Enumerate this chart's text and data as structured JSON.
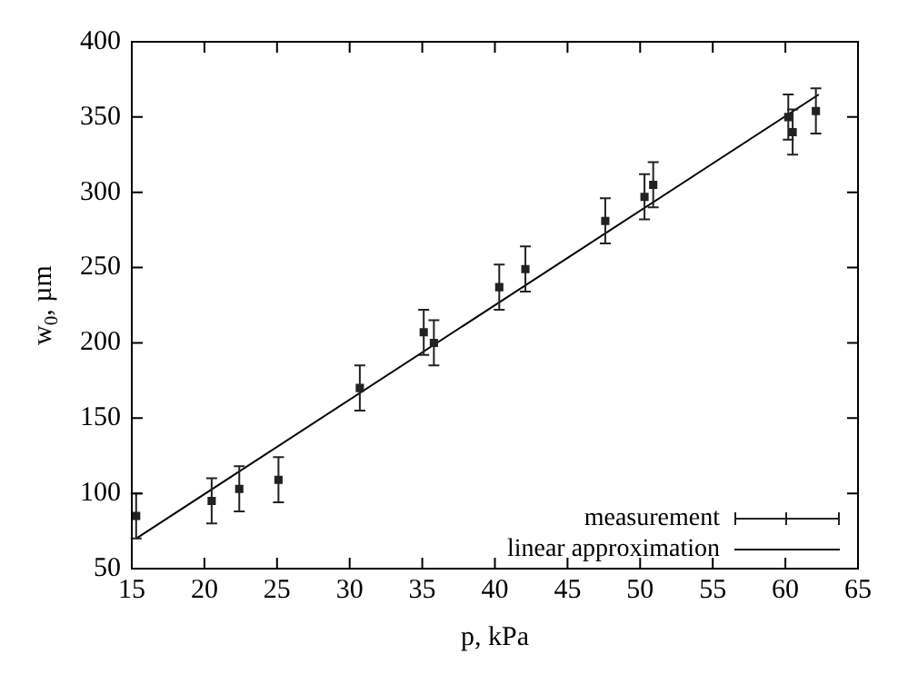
{
  "chart_data": {
    "type": "scatter",
    "xlabel": "p, kPa",
    "ylabel": "w$_{0}$, µm",
    "xlim": [
      15,
      65
    ],
    "xticks": [
      15,
      20,
      25,
      30,
      35,
      40,
      45,
      50,
      55,
      60,
      65
    ],
    "ylim": [
      50,
      400
    ],
    "yticks": [
      50,
      100,
      150,
      200,
      250,
      300,
      350,
      400
    ],
    "grid": false,
    "legend": "bottom right",
    "marker": "square",
    "series": [
      {
        "name": "measurement",
        "color": "#222222",
        "x": [
          15.3,
          20.5,
          22.4,
          25.1,
          30.7,
          35.1,
          35.8,
          40.3,
          42.1,
          47.6,
          50.3,
          50.9,
          60.2,
          60.5,
          62.1
        ],
        "values": [
          85,
          95,
          103,
          109,
          170,
          207,
          200,
          237,
          249,
          281,
          297,
          305,
          350,
          340,
          354
        ],
        "errors": [
          15,
          15,
          15,
          15,
          15,
          15,
          15,
          15,
          15,
          15,
          15,
          15,
          15,
          15,
          15
        ]
      },
      {
        "name": "linear approximation",
        "type": "line",
        "color": "#000000",
        "marker": "none",
        "line_style": "solid",
        "x": [
          15.3,
          62.3
        ],
        "values": [
          70,
          365
        ]
      }
    ]
  }
}
